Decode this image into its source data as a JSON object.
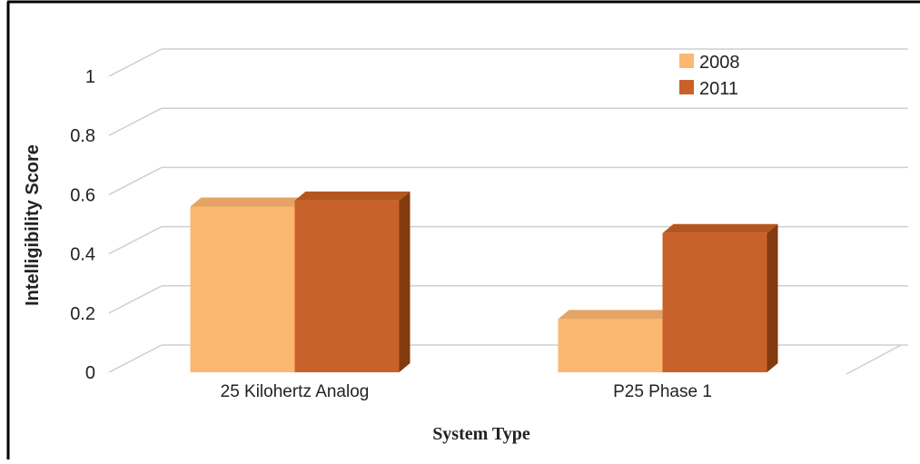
{
  "chart_data": {
    "type": "bar",
    "title": "",
    "xlabel": "System Type",
    "ylabel": "Intelligibility Score",
    "categories": [
      "25 Kilohertz Analog",
      "P25 Phase 1"
    ],
    "series": [
      {
        "name": "2008",
        "values": [
          0.56,
          0.18
        ],
        "color": "#FBB870",
        "top_color": "#E5A465"
      },
      {
        "name": "2011",
        "values": [
          0.58,
          0.47
        ],
        "color": "#C9622A",
        "top_color": "#B5561F",
        "side_color": "#823A0E"
      }
    ],
    "yticks": [
      "0",
      "0.2",
      "0.4",
      "0.6",
      "0.8",
      "1"
    ],
    "ylim": [
      0,
      1
    ],
    "grid": true,
    "legend_position": "top-right",
    "style": "3d-bar"
  }
}
